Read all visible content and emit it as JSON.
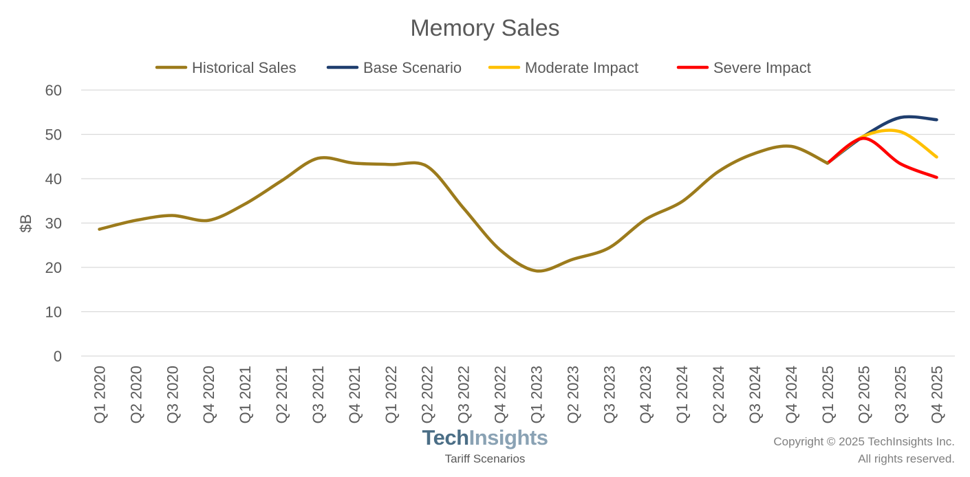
{
  "chart_data": {
    "type": "line",
    "title": "Memory Sales",
    "ylabel": "$B",
    "xlabel": "",
    "ylim": [
      0,
      60
    ],
    "yticks": [
      0,
      10,
      20,
      30,
      40,
      50,
      60
    ],
    "grid": true,
    "legend_position": "top",
    "categories": [
      "Q1 2020",
      "Q2 2020",
      "Q3 2020",
      "Q4 2020",
      "Q1 2021",
      "Q2 2021",
      "Q3 2021",
      "Q4 2021",
      "Q1 2022",
      "Q2 2022",
      "Q3 2022",
      "Q4 2022",
      "Q1 2023",
      "Q2 2023",
      "Q3 2023",
      "Q4 2023",
      "Q1 2024",
      "Q2 2024",
      "Q3 2024",
      "Q4 2024",
      "Q1 2025",
      "Q2 2025",
      "Q3 2025",
      "Q4 2025"
    ],
    "series": [
      {
        "name": "Historical Sales",
        "color": "#9c7b1c",
        "values": [
          28.6,
          30.6,
          31.7,
          30.6,
          34.3,
          39.5,
          44.6,
          43.5,
          43.2,
          42.8,
          33.4,
          24.0,
          19.2,
          21.8,
          24.4,
          30.8,
          34.8,
          41.6,
          45.7,
          47.3,
          43.5,
          null,
          null,
          null
        ]
      },
      {
        "name": "Base Scenario",
        "color": "#1f3e6e",
        "values": [
          null,
          null,
          null,
          null,
          null,
          null,
          null,
          null,
          null,
          null,
          null,
          null,
          null,
          null,
          null,
          null,
          null,
          null,
          null,
          null,
          43.5,
          49.6,
          53.8,
          53.3
        ]
      },
      {
        "name": "Moderate Impact",
        "color": "#ffc000",
        "values": [
          null,
          null,
          null,
          null,
          null,
          null,
          null,
          null,
          null,
          null,
          null,
          null,
          null,
          null,
          null,
          null,
          null,
          null,
          null,
          null,
          43.5,
          49.6,
          50.6,
          44.9
        ]
      },
      {
        "name": "Severe Impact",
        "color": "#ff0000",
        "values": [
          null,
          null,
          null,
          null,
          null,
          null,
          null,
          null,
          null,
          null,
          null,
          null,
          null,
          null,
          null,
          null,
          null,
          null,
          null,
          null,
          43.5,
          49.1,
          43.4,
          40.3
        ]
      }
    ]
  },
  "footer": {
    "logo_part1": "Tech",
    "logo_part2": "Insights",
    "subtitle": "Tariff Scenarios",
    "copyright_line1": "Copyright © 2025 TechInsights Inc.",
    "copyright_line2": "All rights reserved."
  }
}
